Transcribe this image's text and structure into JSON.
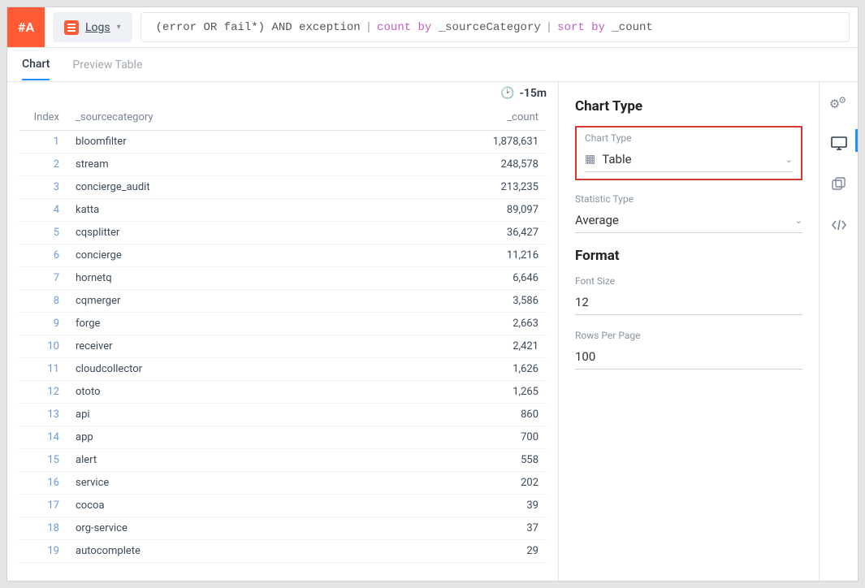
{
  "header": {
    "logo_text": "#A",
    "source_label": "Logs",
    "query": {
      "raw": "(error OR fail*) AND exception | count by _sourceCategory | sort by _count",
      "part1": "(error OR fail*) AND exception",
      "kw_count": "count by",
      "field1": "_sourceCategory",
      "kw_sort": "sort by",
      "field2": "_count"
    }
  },
  "tabs": {
    "chart": "Chart",
    "preview": "Preview Table"
  },
  "time_range": "-15m",
  "table": {
    "columns": {
      "index": "Index",
      "source": "_sourcecategory",
      "count": "_count"
    },
    "rows": [
      {
        "index": "1",
        "source": "bloomfilter",
        "count": "1,878,631"
      },
      {
        "index": "2",
        "source": "stream",
        "count": "248,578"
      },
      {
        "index": "3",
        "source": "concierge_audit",
        "count": "213,235"
      },
      {
        "index": "4",
        "source": "katta",
        "count": "89,097"
      },
      {
        "index": "5",
        "source": "cqsplitter",
        "count": "36,427"
      },
      {
        "index": "6",
        "source": "concierge",
        "count": "11,216"
      },
      {
        "index": "7",
        "source": "hornetq",
        "count": "6,646"
      },
      {
        "index": "8",
        "source": "cqmerger",
        "count": "3,586"
      },
      {
        "index": "9",
        "source": "forge",
        "count": "2,663"
      },
      {
        "index": "10",
        "source": "receiver",
        "count": "2,421"
      },
      {
        "index": "11",
        "source": "cloudcollector",
        "count": "1,626"
      },
      {
        "index": "12",
        "source": "ototo",
        "count": "1,265"
      },
      {
        "index": "13",
        "source": "api",
        "count": "860"
      },
      {
        "index": "14",
        "source": "app",
        "count": "700"
      },
      {
        "index": "15",
        "source": "alert",
        "count": "558"
      },
      {
        "index": "16",
        "source": "service",
        "count": "202"
      },
      {
        "index": "17",
        "source": "cocoa",
        "count": "39"
      },
      {
        "index": "18",
        "source": "org-service",
        "count": "37"
      },
      {
        "index": "19",
        "source": "autocomplete",
        "count": "29"
      }
    ]
  },
  "side": {
    "chart_type_heading": "Chart Type",
    "chart_type_label": "Chart Type",
    "chart_type_value": "Table",
    "statistic_label": "Statistic Type",
    "statistic_value": "Average",
    "format_heading": "Format",
    "font_size_label": "Font Size",
    "font_size_value": "12",
    "rows_per_page_label": "Rows Per Page",
    "rows_per_page_value": "100"
  },
  "colors": {
    "accent_orange": "#ff5c35",
    "accent_blue": "#1e90ff",
    "highlight_red": "#d43a2b",
    "text_muted": "#7a8596"
  }
}
